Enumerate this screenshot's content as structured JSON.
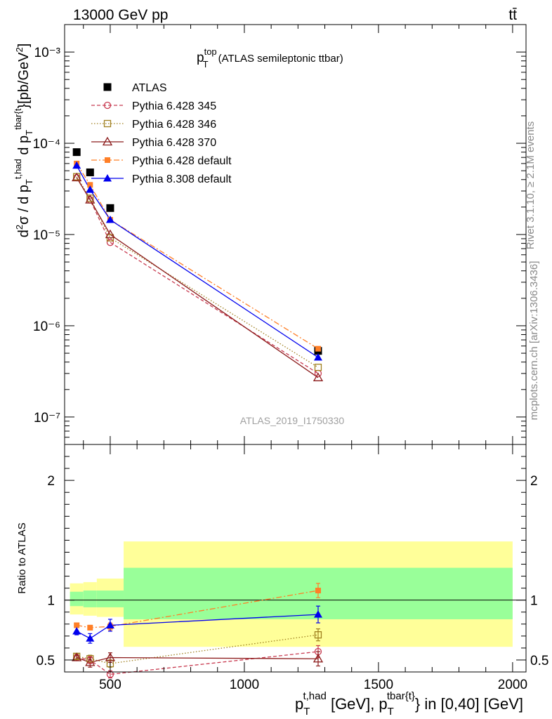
{
  "header": {
    "left": "13000 GeV pp",
    "right": "tt̄"
  },
  "side_text": {
    "rivet": "Rivet 3.1.10, ≥ 2.1M events",
    "mcplots": "mcplots.cern.ch [arXiv:1306.3436]"
  },
  "watermark": "ATLAS_2019_I1750330",
  "colors": {
    "ratio_band_inner": "#99ff99",
    "ratio_band_outer": "#ffff99"
  },
  "chart_data": [
    {
      "type": "scatter",
      "panel": "main",
      "title_main": "p",
      "title_sup": "top",
      "title_sub": "T",
      "title_rest": "(ATLAS semileptonic ttbar)",
      "yscale": "log",
      "ylim": [
        5e-08,
        0.002
      ],
      "xlim": [
        330,
        2050
      ],
      "ytick_labels": [
        "10⁻⁷",
        "10⁻⁶",
        "10⁻⁵",
        "10⁻⁴",
        "10⁻³"
      ],
      "ylabel": "d²σ / d p_T^{t,had} d p_T^{tbar{t}} [pb/GeV²]",
      "legend_position": "top-left",
      "series": [
        {
          "name": "ATLAS",
          "color": "#000000",
          "marker": "square",
          "style": "none",
          "x": [
            375,
            425,
            500,
            1275
          ],
          "y": [
            8e-05,
            4.8e-05,
            1.95e-05,
            5.3e-07
          ]
        },
        {
          "name": "Pythia 6.428 345",
          "color": "#c83a50",
          "marker": "circle-open",
          "style": "dashed",
          "x": [
            375,
            425,
            500,
            1275
          ],
          "y": [
            4.2e-05,
            2.4e-05,
            8.2e-06,
            3e-07
          ]
        },
        {
          "name": "Pythia 6.428 346",
          "color": "#a08020",
          "marker": "square-open",
          "style": "dotted",
          "x": [
            375,
            425,
            500,
            1275
          ],
          "y": [
            4.3e-05,
            2.5e-05,
            9.2e-06,
            3.5e-07
          ]
        },
        {
          "name": "Pythia 6.428 370",
          "color": "#8b1a1a",
          "marker": "triangle-open",
          "style": "solid",
          "x": [
            375,
            425,
            500,
            1275
          ],
          "y": [
            4.2e-05,
            2.4e-05,
            1e-05,
            2.7e-07
          ]
        },
        {
          "name": "Pythia 6.428 default",
          "color": "#ff7f27",
          "marker": "square-filled",
          "style": "dashdot",
          "x": [
            375,
            425,
            500,
            1275
          ],
          "y": [
            6e-05,
            3.5e-05,
            1.45e-05,
            5.6e-07
          ]
        },
        {
          "name": "Pythia 8.308 default",
          "color": "#0000ee",
          "marker": "triangle-filled",
          "style": "solid",
          "x": [
            375,
            425,
            500,
            1275
          ],
          "y": [
            5.7e-05,
            3.1e-05,
            1.45e-05,
            4.5e-07
          ]
        }
      ]
    },
    {
      "type": "scatter",
      "panel": "ratio",
      "ylabel": "Ratio to ATLAS",
      "xlim": [
        330,
        2050
      ],
      "ylim": [
        0.4,
        2.3
      ],
      "yticks": [
        0.5,
        1,
        2
      ],
      "ytick_labels": [
        "0.5",
        "1",
        "2"
      ],
      "xticks": [
        500,
        1000,
        1500,
        2000
      ],
      "xtick_labels": [
        "500",
        "1000",
        "1500",
        "2000"
      ],
      "xlabel_parts": {
        "p": "p",
        "sub1": "T",
        "sup1": "t,had",
        "mid": " [GeV], p",
        "sub2": "T",
        "sup2": "tbar{t}",
        "end": "} in [0,40] [GeV]"
      },
      "reference_line": 1,
      "bands": [
        {
          "x0": 350,
          "x1": 400,
          "inner": [
            0.95,
            1.07
          ],
          "outer": [
            0.88,
            1.14
          ]
        },
        {
          "x0": 400,
          "x1": 450,
          "inner": [
            0.94,
            1.08
          ],
          "outer": [
            0.87,
            1.15
          ]
        },
        {
          "x0": 450,
          "x1": 550,
          "inner": [
            0.94,
            1.08
          ],
          "outer": [
            0.86,
            1.18
          ]
        },
        {
          "x0": 550,
          "x1": 2000,
          "inner": [
            0.84,
            1.27
          ],
          "outer": [
            0.61,
            1.49
          ]
        }
      ],
      "series": [
        {
          "name": "Pythia 6.428 345",
          "color": "#c83a50",
          "marker": "circle-open",
          "style": "dashed",
          "x": [
            375,
            425,
            500,
            1275
          ],
          "y": [
            0.52,
            0.5,
            0.38,
            0.57
          ],
          "err": [
            0.02,
            0.03,
            0.03,
            0.05
          ]
        },
        {
          "name": "Pythia 6.428 346",
          "color": "#a08020",
          "marker": "square-open",
          "style": "dotted",
          "x": [
            375,
            425,
            500,
            1275
          ],
          "y": [
            0.53,
            0.51,
            0.47,
            0.71
          ],
          "err": [
            0.02,
            0.03,
            0.03,
            0.05
          ]
        },
        {
          "name": "Pythia 6.428 370",
          "color": "#8b1a1a",
          "marker": "triangle-open",
          "style": "solid",
          "x": [
            375,
            425,
            500,
            1275
          ],
          "y": [
            0.52,
            0.48,
            0.52,
            0.51
          ],
          "err": [
            0.02,
            0.04,
            0.04,
            0.06
          ]
        },
        {
          "name": "Pythia 6.428 default",
          "color": "#ff7f27",
          "marker": "square-filled",
          "style": "dashdot",
          "x": [
            375,
            425,
            500,
            1275
          ],
          "y": [
            0.79,
            0.77,
            0.78,
            1.08
          ],
          "err": [
            0.02,
            0.02,
            0.03,
            0.06
          ]
        },
        {
          "name": "Pythia 8.308 default",
          "color": "#0000ee",
          "marker": "triangle-filled",
          "style": "solid",
          "x": [
            375,
            425,
            500,
            1275
          ],
          "y": [
            0.74,
            0.68,
            0.79,
            0.88
          ],
          "err": [
            0.03,
            0.04,
            0.05,
            0.07
          ]
        }
      ]
    }
  ]
}
